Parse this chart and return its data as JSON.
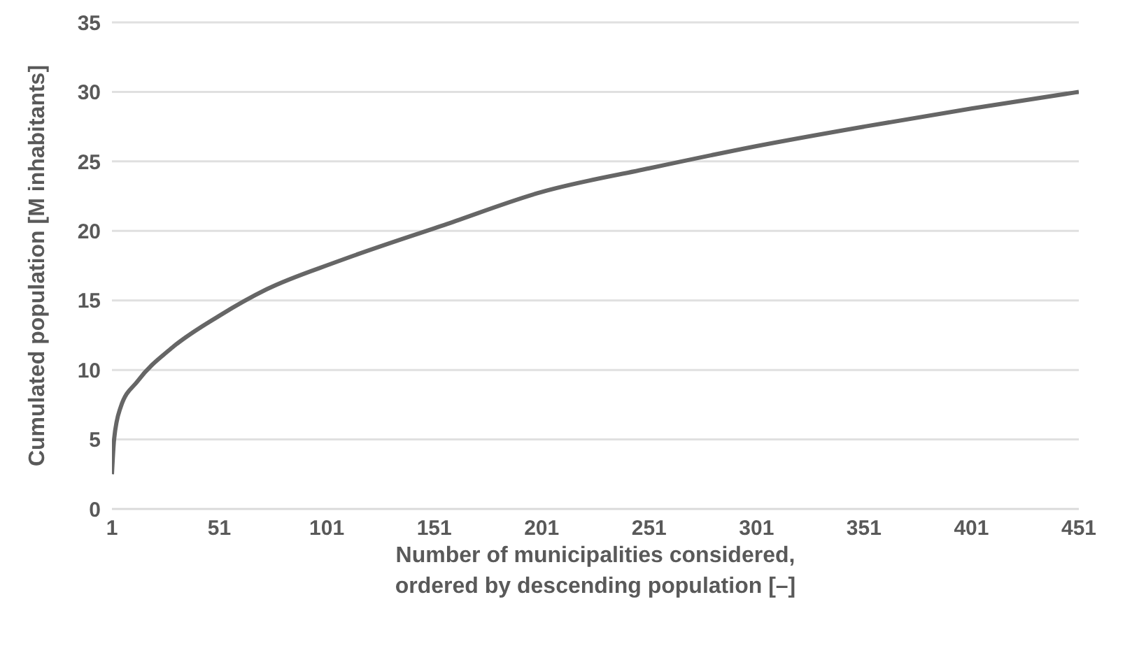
{
  "chart_data": {
    "type": "line",
    "xlabel": "Number of municipalities considered,\nordered by descending population [–]",
    "ylabel": "Cumulated population [M inhabitants]",
    "x": [
      1,
      2,
      5,
      13,
      29,
      51,
      73,
      106,
      157,
      201,
      251,
      301,
      351,
      401,
      451
    ],
    "series": [
      {
        "color": "#666666",
        "values": [
          2.5,
          5,
          7.3,
          9.2,
          11.6,
          13.9,
          15.8,
          17.8,
          20.5,
          22.8,
          24.5,
          26.1,
          27.5,
          28.8,
          30
        ]
      }
    ],
    "xlim": [
      1,
      451
    ],
    "xticks": [
      1,
      51,
      101,
      151,
      201,
      251,
      301,
      351,
      401,
      451
    ],
    "ylim": [
      0,
      35
    ],
    "yticks": [
      0,
      5,
      10,
      15,
      20,
      25,
      30,
      35
    ],
    "grid": "y",
    "marker": "none",
    "line_style": "solid"
  }
}
